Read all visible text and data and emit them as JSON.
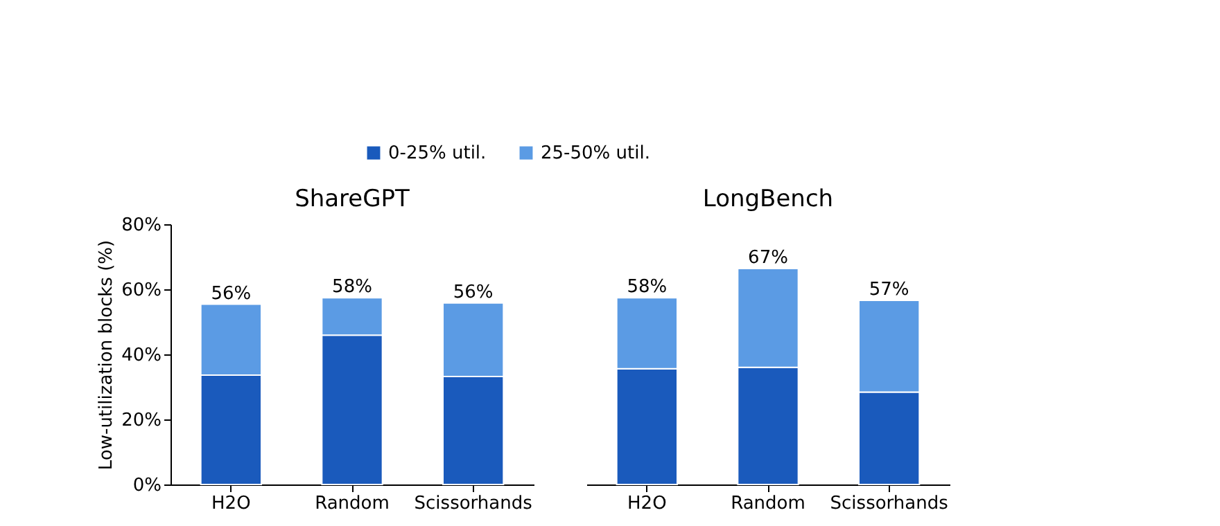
{
  "chart_data": [
    {
      "type": "bar",
      "title": "ShareGPT",
      "ylabel": "Low-utilization blocks (%)",
      "categories": [
        "H2O",
        "Random",
        "Scissorhands"
      ],
      "stacked": true,
      "legend": "top",
      "grid": false,
      "ylim": [
        0,
        80
      ],
      "yticks": [
        {
          "value": 0,
          "label": "0%"
        },
        {
          "value": 20,
          "label": "20%"
        },
        {
          "value": 40,
          "label": "40%"
        },
        {
          "value": 60,
          "label": "60%"
        },
        {
          "value": 80,
          "label": "80%"
        }
      ],
      "totals": [
        "56%",
        "58%",
        "56%"
      ],
      "series": [
        {
          "name": "0-25% util.",
          "color": "#1a5abc",
          "values": [
            33.6,
            45.9,
            33.2
          ]
        },
        {
          "name": "25-50% util.",
          "color": "#5b9be4",
          "values": [
            21.8,
            11.5,
            22.6
          ]
        }
      ]
    },
    {
      "type": "bar",
      "title": "LongBench",
      "categories": [
        "H2O",
        "Random",
        "Scissorhands"
      ],
      "stacked": true,
      "grid": false,
      "tick_labels": "x",
      "ylim": [
        0,
        80
      ],
      "totals": [
        "58%",
        "67%",
        "57%"
      ],
      "series": [
        {
          "name": "0-25% util.",
          "color": "#1a5abc",
          "values": [
            35.6,
            36.0,
            28.4
          ]
        },
        {
          "name": "25-50% util.",
          "color": "#5b9be4",
          "values": [
            21.8,
            30.4,
            28.2
          ]
        }
      ]
    }
  ]
}
